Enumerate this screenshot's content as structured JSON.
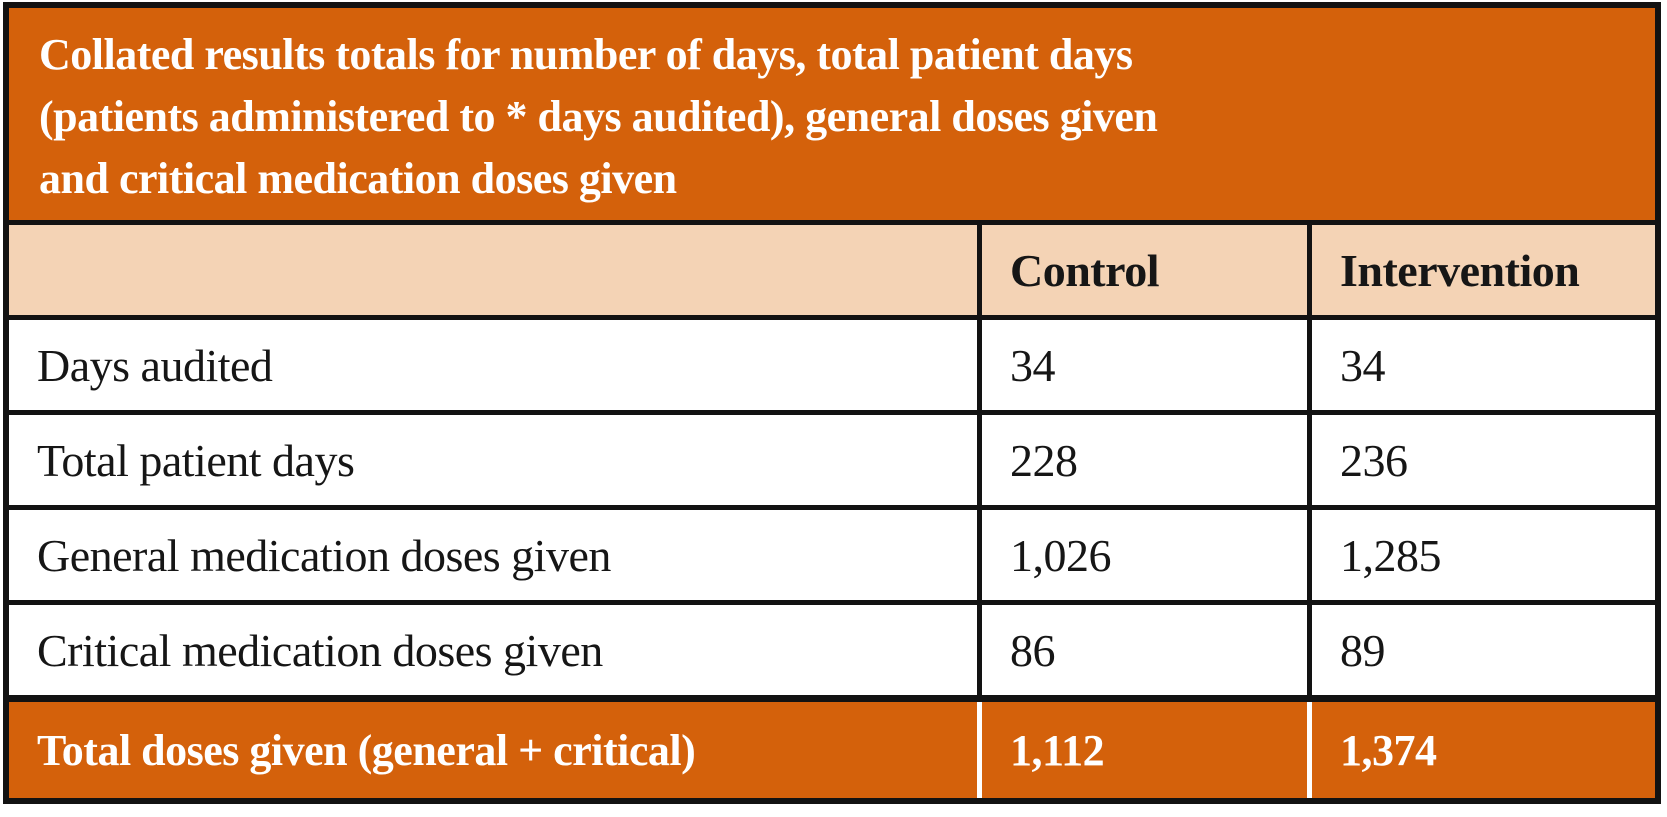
{
  "colors": {
    "banner_orange": "#d4610b",
    "header_peach": "#f4d3b5",
    "border_black": "#121212",
    "footer_text_white": "#ffffff",
    "body_text_black": "#161616"
  },
  "table": {
    "title_lines": [
      "Collated results totals for number of days, total patient days",
      "(patients administered to * days audited), general doses given",
      "and critical medication doses given"
    ],
    "columns": [
      "",
      "Control",
      "Intervention"
    ],
    "rows": [
      {
        "label": "Days audited",
        "control": "34",
        "intervention": "34"
      },
      {
        "label": "Total patient days",
        "control": "228",
        "intervention": "236"
      },
      {
        "label": "General medication doses given",
        "control": "1,026",
        "intervention": "1,285"
      },
      {
        "label": "Critical medication doses given",
        "control": "86",
        "intervention": "89"
      }
    ],
    "footer": {
      "label": "Total doses given (general + critical)",
      "control": "1,112",
      "intervention": "1,374"
    }
  },
  "chart_data": {
    "type": "table",
    "title": "Collated results totals for number of days, total patient days (patients administered to * days audited), general doses given and critical medication doses given",
    "columns": [
      "",
      "Control",
      "Intervention"
    ],
    "rows": [
      [
        "Days audited",
        34,
        34
      ],
      [
        "Total patient days",
        228,
        236
      ],
      [
        "General medication doses given",
        1026,
        1285
      ],
      [
        "Critical medication doses given",
        86,
        89
      ],
      [
        "Total doses given (general + critical)",
        1112,
        1374
      ]
    ]
  }
}
